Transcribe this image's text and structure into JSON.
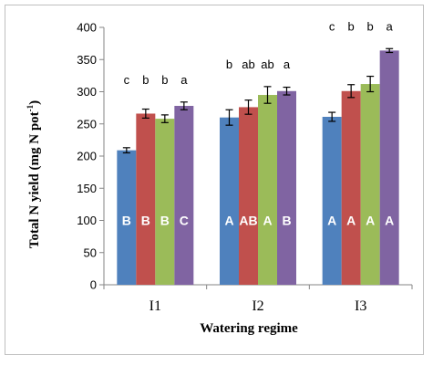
{
  "chart_data": {
    "type": "bar",
    "categories": [
      "I1",
      "I2",
      "I3"
    ],
    "xlabel": "Watering regime",
    "ylabel": "Total N yield (mg N pot",
    "ylabel_superscript": "-1",
    "ylabel_close": ")",
    "ylim": [
      0,
      400
    ],
    "yticks": [
      0,
      50,
      100,
      150,
      200,
      250,
      300,
      350,
      400
    ],
    "grid": false,
    "legend": "none",
    "series": [
      {
        "color": "#4f81bd",
        "values": [
          209,
          260,
          261
        ],
        "errors": [
          4,
          12,
          7
        ],
        "top_letters": [
          "c",
          "b",
          "c"
        ],
        "inner_letters": [
          "B",
          "A",
          "A"
        ]
      },
      {
        "color": "#c0504d",
        "values": [
          266,
          276,
          301
        ],
        "errors": [
          7,
          11,
          10
        ],
        "top_letters": [
          "b",
          "ab",
          "b"
        ],
        "inner_letters": [
          "B",
          "AB",
          "A"
        ]
      },
      {
        "color": "#9bbb59",
        "values": [
          258,
          295,
          312
        ],
        "errors": [
          6,
          13,
          12
        ],
        "top_letters": [
          "b",
          "ab",
          "b"
        ],
        "inner_letters": [
          "B",
          "A",
          "A"
        ]
      },
      {
        "color": "#8064a2",
        "values": [
          278,
          301,
          364
        ],
        "errors": [
          6,
          6,
          3
        ],
        "top_letters": [
          "a",
          "a",
          "a"
        ],
        "inner_letters": [
          "C",
          "B",
          "A"
        ]
      }
    ]
  }
}
